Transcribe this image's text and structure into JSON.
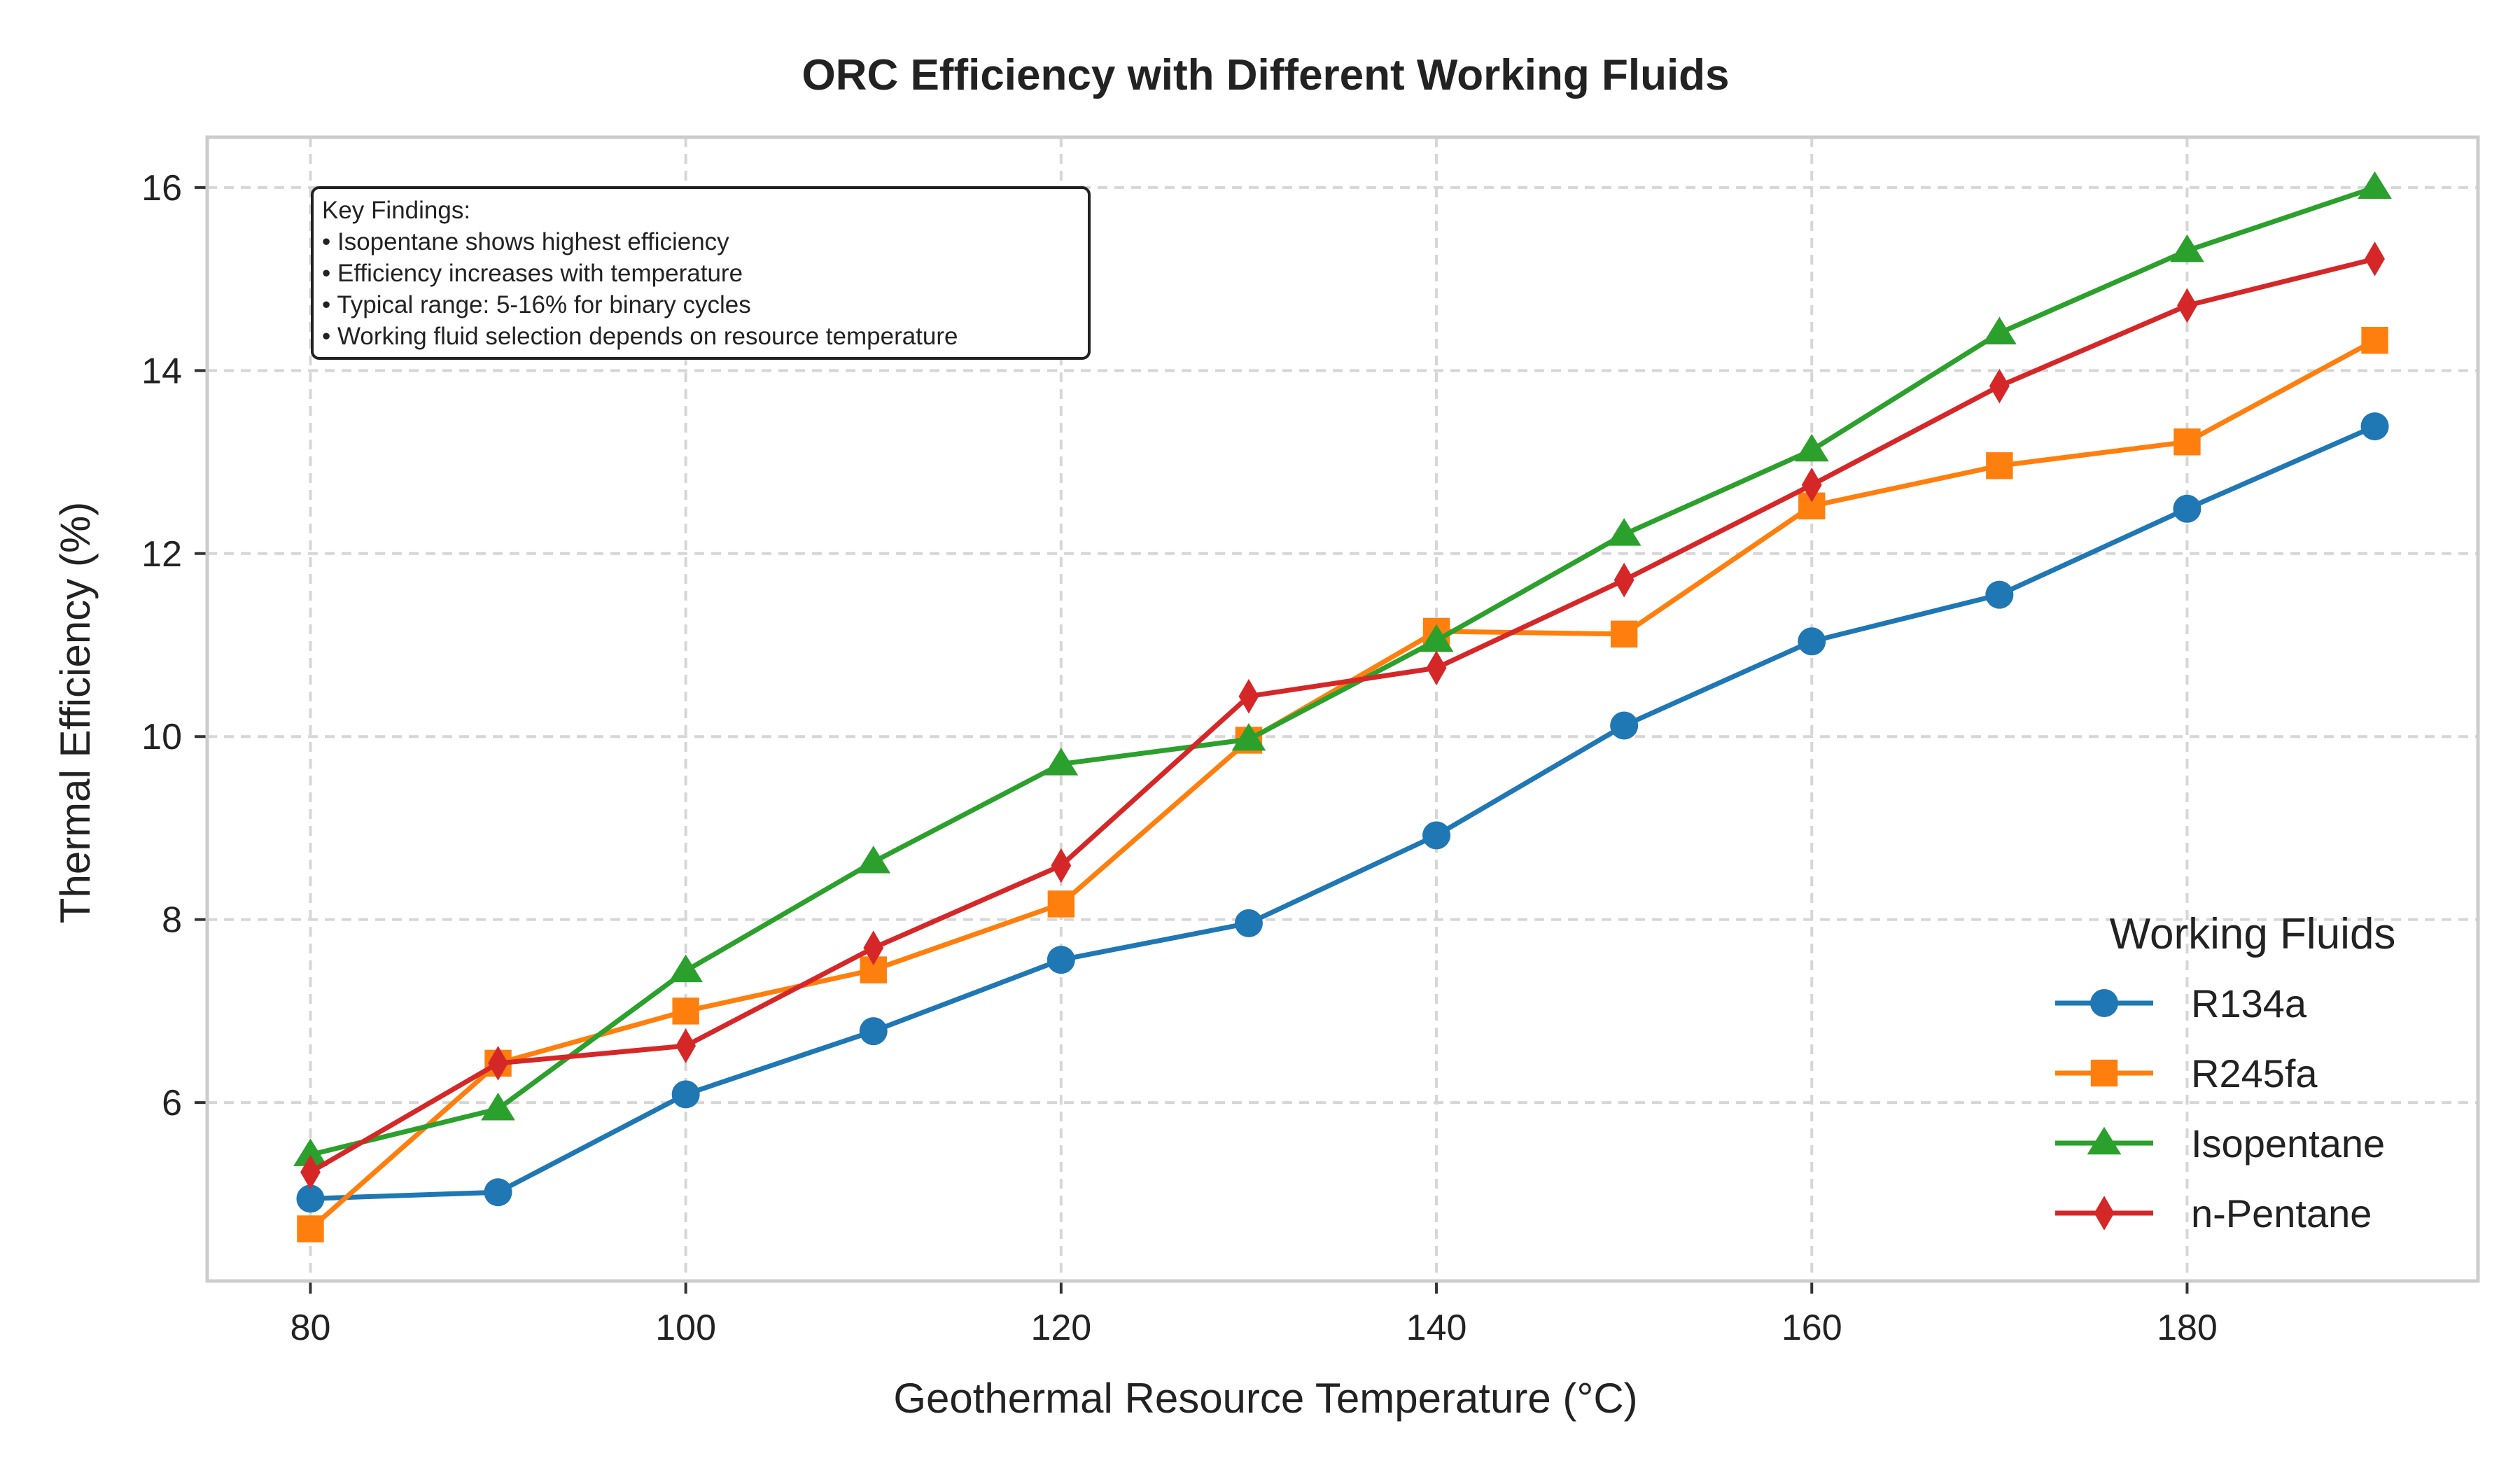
{
  "chart_data": {
    "type": "line",
    "title": "ORC Efficiency with Different Working Fluids",
    "xlabel": "Geothermal Resource Temperature (°C)",
    "ylabel": "Thermal Efficiency (%)",
    "xlim": [
      74.5,
      195.5
    ],
    "ylim": [
      4.05,
      16.55
    ],
    "xticks": [
      80,
      100,
      120,
      140,
      160,
      180
    ],
    "yticks": [
      6,
      8,
      10,
      12,
      14,
      16
    ],
    "grid": true,
    "legend": {
      "title": "Working Fluids",
      "placement": "lower-right"
    },
    "x": [
      80,
      90,
      100,
      110,
      120,
      130,
      140,
      150,
      160,
      170,
      180,
      190
    ],
    "series": [
      {
        "name": "R134a",
        "color": "#1f77b4",
        "marker": "circle",
        "values": [
          4.95,
          5.02,
          6.09,
          6.78,
          7.56,
          7.96,
          8.92,
          10.12,
          11.04,
          11.55,
          12.49,
          13.39
        ]
      },
      {
        "name": "R245fa",
        "color": "#ff7f0e",
        "marker": "square",
        "values": [
          4.62,
          6.43,
          7.0,
          7.45,
          8.17,
          9.96,
          11.15,
          11.12,
          12.52,
          12.96,
          13.22,
          14.33
        ]
      },
      {
        "name": "Isopentane",
        "color": "#2ca02c",
        "marker": "triangle",
        "values": [
          5.43,
          5.93,
          7.44,
          8.63,
          9.7,
          9.97,
          11.05,
          12.21,
          13.13,
          14.41,
          15.31,
          16.0
        ]
      },
      {
        "name": "n-Pentane",
        "color": "#d62728",
        "marker": "diamond",
        "values": [
          5.24,
          6.43,
          6.62,
          7.69,
          8.59,
          10.44,
          10.75,
          11.71,
          12.75,
          13.83,
          14.71,
          15.22
        ]
      }
    ],
    "annotation": {
      "lines": [
        "Key Findings:",
        "• Isopentane shows highest efficiency",
        "• Efficiency increases with temperature",
        "• Typical range: 5-16% for binary cycles",
        "• Working fluid selection depends on resource temperature"
      ]
    }
  }
}
